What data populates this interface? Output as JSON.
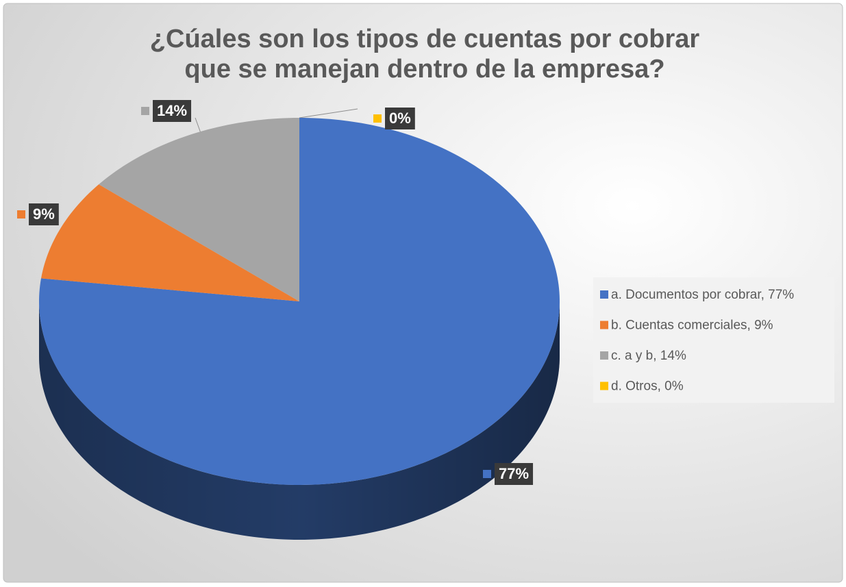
{
  "chart_data": {
    "type": "pie3d",
    "title": "¿Cúales son los tipos de cuentas por cobrar que se manejan dentro de la empresa?",
    "categories": [
      "a. Documentos por cobrar, 77%",
      "b. Cuentas comerciales, 9%",
      "c. a y b, 14%",
      "d. Otros, 0%"
    ],
    "values": [
      77,
      9,
      14,
      0
    ],
    "value_labels": [
      "77%",
      "9%",
      "14%",
      "0%"
    ],
    "colors": [
      "#4472c4",
      "#ed7d31",
      "#a5a5a5",
      "#ffc000"
    ],
    "legend": "right"
  }
}
